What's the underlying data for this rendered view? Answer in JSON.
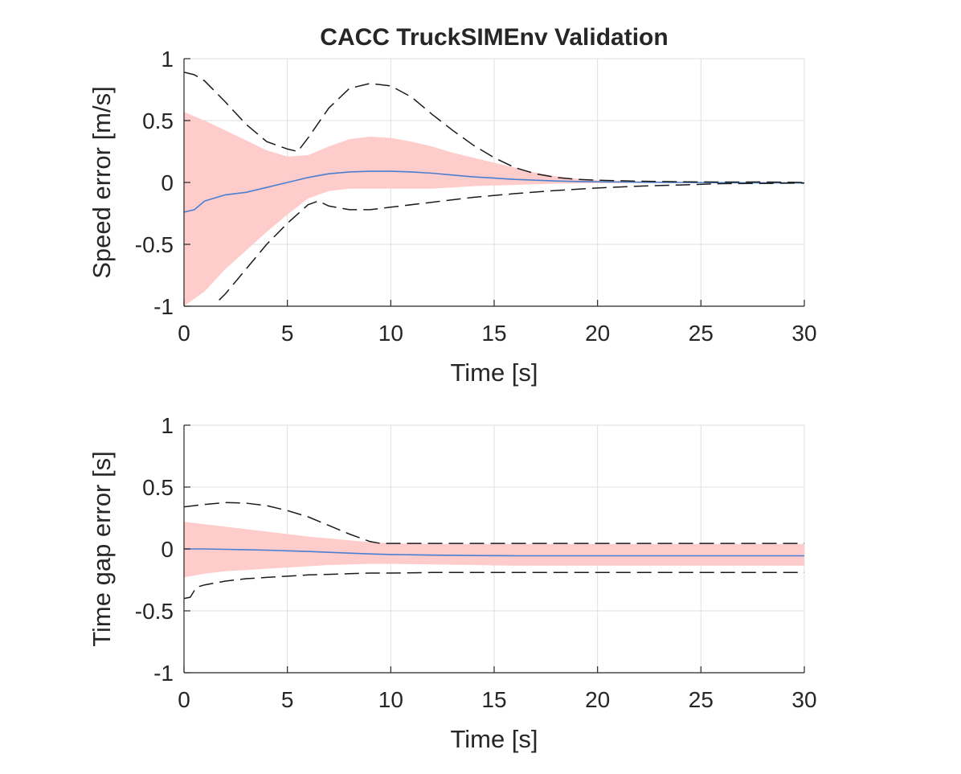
{
  "figure_title": "CACC TruckSIMEnv Validation",
  "colors": {
    "band": "#ffcccc",
    "mean": "#4a7fd0",
    "bound": "#1a1a1a",
    "grid": "#dfdfdf",
    "axis": "#262626"
  },
  "chart_data": [
    {
      "type": "line",
      "title": "CACC TruckSIMEnv Validation",
      "xlabel": "Time [s]",
      "ylabel": "Speed error [m/s]",
      "xlim": [
        0,
        30
      ],
      "ylim": [
        -1,
        1
      ],
      "xticks": [
        0,
        5,
        10,
        15,
        20,
        25,
        30
      ],
      "yticks": [
        -1,
        -0.5,
        0,
        0.5,
        1
      ],
      "xtick_labels": [
        "0",
        "5",
        "10",
        "15",
        "20",
        "25",
        "30"
      ],
      "ytick_labels": [
        "-1",
        "-0.5",
        "0",
        "0.5",
        "1"
      ],
      "grid": true,
      "band": {
        "name": "spread",
        "x": [
          0,
          1,
          2,
          3,
          4,
          5,
          6,
          7,
          8,
          9,
          10,
          11,
          12,
          13,
          14,
          15,
          16,
          17,
          18,
          19,
          20,
          22,
          24,
          26,
          28,
          30
        ],
        "upper": [
          0.57,
          0.5,
          0.42,
          0.34,
          0.26,
          0.21,
          0.22,
          0.29,
          0.35,
          0.37,
          0.36,
          0.33,
          0.29,
          0.24,
          0.2,
          0.16,
          0.12,
          0.08,
          0.05,
          0.03,
          0.02,
          0.01,
          0.005,
          0.003,
          0.002,
          0.002
        ],
        "lower": [
          -1.0,
          -0.88,
          -0.7,
          -0.55,
          -0.4,
          -0.26,
          -0.13,
          -0.07,
          -0.05,
          -0.05,
          -0.05,
          -0.05,
          -0.05,
          -0.04,
          -0.03,
          -0.025,
          -0.02,
          -0.015,
          -0.01,
          -0.008,
          -0.006,
          -0.005,
          -0.004,
          -0.003,
          -0.003,
          -0.003
        ]
      },
      "series": [
        {
          "name": "mean",
          "style": "solid",
          "x": [
            0,
            0.5,
            1,
            2,
            3,
            4,
            5,
            6,
            7,
            8,
            9,
            10,
            11,
            12,
            13,
            14,
            15,
            16,
            17,
            18,
            19,
            20,
            22,
            24,
            26,
            28,
            30
          ],
          "values": [
            -0.24,
            -0.22,
            -0.15,
            -0.1,
            -0.08,
            -0.04,
            0.0,
            0.04,
            0.07,
            0.085,
            0.09,
            0.09,
            0.085,
            0.075,
            0.06,
            0.045,
            0.035,
            0.025,
            0.018,
            0.012,
            0.008,
            0.005,
            0.002,
            0.0,
            -0.002,
            -0.003,
            -0.004
          ]
        },
        {
          "name": "upper bound",
          "style": "dashed",
          "x": [
            0,
            0.5,
            1,
            2,
            3,
            4,
            5,
            5.5,
            6,
            7,
            8,
            9,
            10,
            11,
            12,
            13,
            14,
            15,
            16,
            17,
            18,
            19,
            20,
            22,
            24,
            26,
            28,
            30
          ],
          "values": [
            0.89,
            0.87,
            0.82,
            0.65,
            0.47,
            0.33,
            0.27,
            0.25,
            0.36,
            0.6,
            0.76,
            0.8,
            0.78,
            0.69,
            0.55,
            0.42,
            0.3,
            0.2,
            0.12,
            0.07,
            0.04,
            0.025,
            0.018,
            0.01,
            0.005,
            0.003,
            0.004,
            0.0
          ]
        },
        {
          "name": "lower bound",
          "style": "dashed",
          "x": [
            1.7,
            2,
            3,
            4,
            5,
            6,
            6.5,
            7,
            8,
            9,
            10,
            12,
            14,
            16,
            18,
            20,
            22,
            24,
            26,
            28,
            30
          ],
          "values": [
            -0.95,
            -0.9,
            -0.7,
            -0.5,
            -0.33,
            -0.18,
            -0.15,
            -0.19,
            -0.22,
            -0.22,
            -0.2,
            -0.16,
            -0.12,
            -0.09,
            -0.065,
            -0.045,
            -0.03,
            -0.02,
            -0.01,
            -0.008,
            -0.005
          ]
        }
      ]
    },
    {
      "type": "line",
      "title": "",
      "xlabel": "Time [s]",
      "ylabel": "Time gap error [s]",
      "xlim": [
        0,
        30
      ],
      "ylim": [
        -1,
        1
      ],
      "xticks": [
        0,
        5,
        10,
        15,
        20,
        25,
        30
      ],
      "yticks": [
        -1,
        -0.5,
        0,
        0.5,
        1
      ],
      "xtick_labels": [
        "0",
        "5",
        "10",
        "15",
        "20",
        "25",
        "30"
      ],
      "ytick_labels": [
        "-1",
        "-0.5",
        "0",
        "0.5",
        "1"
      ],
      "grid": true,
      "band": {
        "name": "spread",
        "x": [
          0,
          1,
          2,
          3,
          4,
          5,
          6,
          7,
          8,
          9,
          10,
          12,
          14,
          16,
          18,
          20,
          22,
          24,
          26,
          28,
          30
        ],
        "upper": [
          0.22,
          0.2,
          0.18,
          0.16,
          0.14,
          0.12,
          0.1,
          0.085,
          0.07,
          0.055,
          0.045,
          0.04,
          0.04,
          0.04,
          0.04,
          0.04,
          0.04,
          0.04,
          0.04,
          0.04,
          0.04
        ],
        "lower": [
          -0.23,
          -0.2,
          -0.18,
          -0.17,
          -0.16,
          -0.15,
          -0.14,
          -0.13,
          -0.125,
          -0.12,
          -0.12,
          -0.125,
          -0.13,
          -0.135,
          -0.135,
          -0.135,
          -0.135,
          -0.135,
          -0.135,
          -0.135,
          -0.135
        ]
      },
      "series": [
        {
          "name": "mean",
          "style": "solid",
          "x": [
            0,
            1,
            2,
            3,
            4,
            5,
            6,
            7,
            8,
            9,
            10,
            12,
            14,
            16,
            18,
            20,
            22,
            24,
            26,
            28,
            30
          ],
          "values": [
            0.0,
            0.0,
            -0.003,
            -0.006,
            -0.01,
            -0.015,
            -0.02,
            -0.027,
            -0.034,
            -0.04,
            -0.045,
            -0.05,
            -0.053,
            -0.055,
            -0.055,
            -0.055,
            -0.055,
            -0.055,
            -0.055,
            -0.055,
            -0.055
          ]
        },
        {
          "name": "upper bound",
          "style": "dashed",
          "x": [
            0,
            0.5,
            1,
            2,
            3,
            4,
            5,
            6,
            7,
            8,
            9,
            9.5,
            10,
            12,
            14,
            16,
            18,
            20,
            22,
            24,
            26,
            28,
            30
          ],
          "values": [
            0.34,
            0.35,
            0.36,
            0.375,
            0.37,
            0.35,
            0.31,
            0.26,
            0.19,
            0.12,
            0.06,
            0.045,
            0.045,
            0.045,
            0.045,
            0.045,
            0.045,
            0.045,
            0.045,
            0.045,
            0.045,
            0.045,
            0.045
          ]
        },
        {
          "name": "lower bound",
          "style": "dashed",
          "x": [
            0,
            0.3,
            0.6,
            1,
            2,
            3,
            4,
            5,
            6,
            7,
            8,
            9,
            10,
            12,
            14,
            16,
            18,
            20,
            22,
            24,
            26,
            28,
            30
          ],
          "values": [
            -0.4,
            -0.39,
            -0.31,
            -0.29,
            -0.26,
            -0.24,
            -0.23,
            -0.22,
            -0.21,
            -0.205,
            -0.2,
            -0.195,
            -0.195,
            -0.19,
            -0.19,
            -0.19,
            -0.19,
            -0.19,
            -0.19,
            -0.19,
            -0.19,
            -0.19,
            -0.19
          ]
        }
      ]
    }
  ]
}
